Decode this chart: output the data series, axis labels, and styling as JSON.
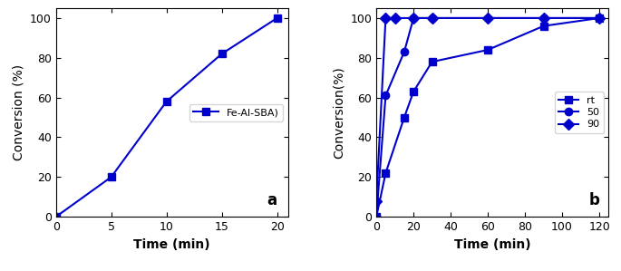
{
  "panel_a": {
    "x": [
      0,
      5,
      10,
      15,
      20
    ],
    "y": [
      0,
      20,
      58,
      82,
      100
    ],
    "label": "Fe-Al-SBA)",
    "marker": "s",
    "xlabel": "Time (min)",
    "ylabel": "Conversion (%)",
    "xlim": [
      0,
      21
    ],
    "ylim": [
      0,
      105
    ],
    "panel_label": "a",
    "xticks": [
      0,
      5,
      10,
      15,
      20
    ],
    "yticks": [
      0,
      20,
      40,
      60,
      80,
      100
    ]
  },
  "panel_b": {
    "series": [
      {
        "x": [
          0,
          5,
          15,
          20,
          30,
          60,
          90,
          120
        ],
        "y": [
          0,
          22,
          50,
          63,
          78,
          84,
          96,
          100
        ],
        "label": "rt",
        "marker": "s"
      },
      {
        "x": [
          0,
          5,
          15,
          20,
          30,
          90,
          120
        ],
        "y": [
          0,
          61,
          83,
          100,
          100,
          100,
          100
        ],
        "label": "50",
        "marker": "o"
      },
      {
        "x": [
          0,
          5,
          10,
          20,
          30,
          60,
          90,
          120
        ],
        "y": [
          8,
          100,
          100,
          100,
          100,
          100,
          100,
          100
        ],
        "label": "90",
        "marker": "D"
      }
    ],
    "xlabel": "Time (min)",
    "ylabel": "Conversion(%)",
    "xlim": [
      0,
      125
    ],
    "ylim": [
      0,
      105
    ],
    "panel_label": "b",
    "xticks": [
      0,
      20,
      40,
      60,
      80,
      100,
      120
    ],
    "yticks": [
      0,
      20,
      40,
      60,
      80,
      100
    ]
  },
  "line_width": 1.5,
  "marker_size": 6,
  "font_size_label": 10,
  "font_size_tick": 9,
  "font_size_panel": 12,
  "blue_color": "#0000CD"
}
